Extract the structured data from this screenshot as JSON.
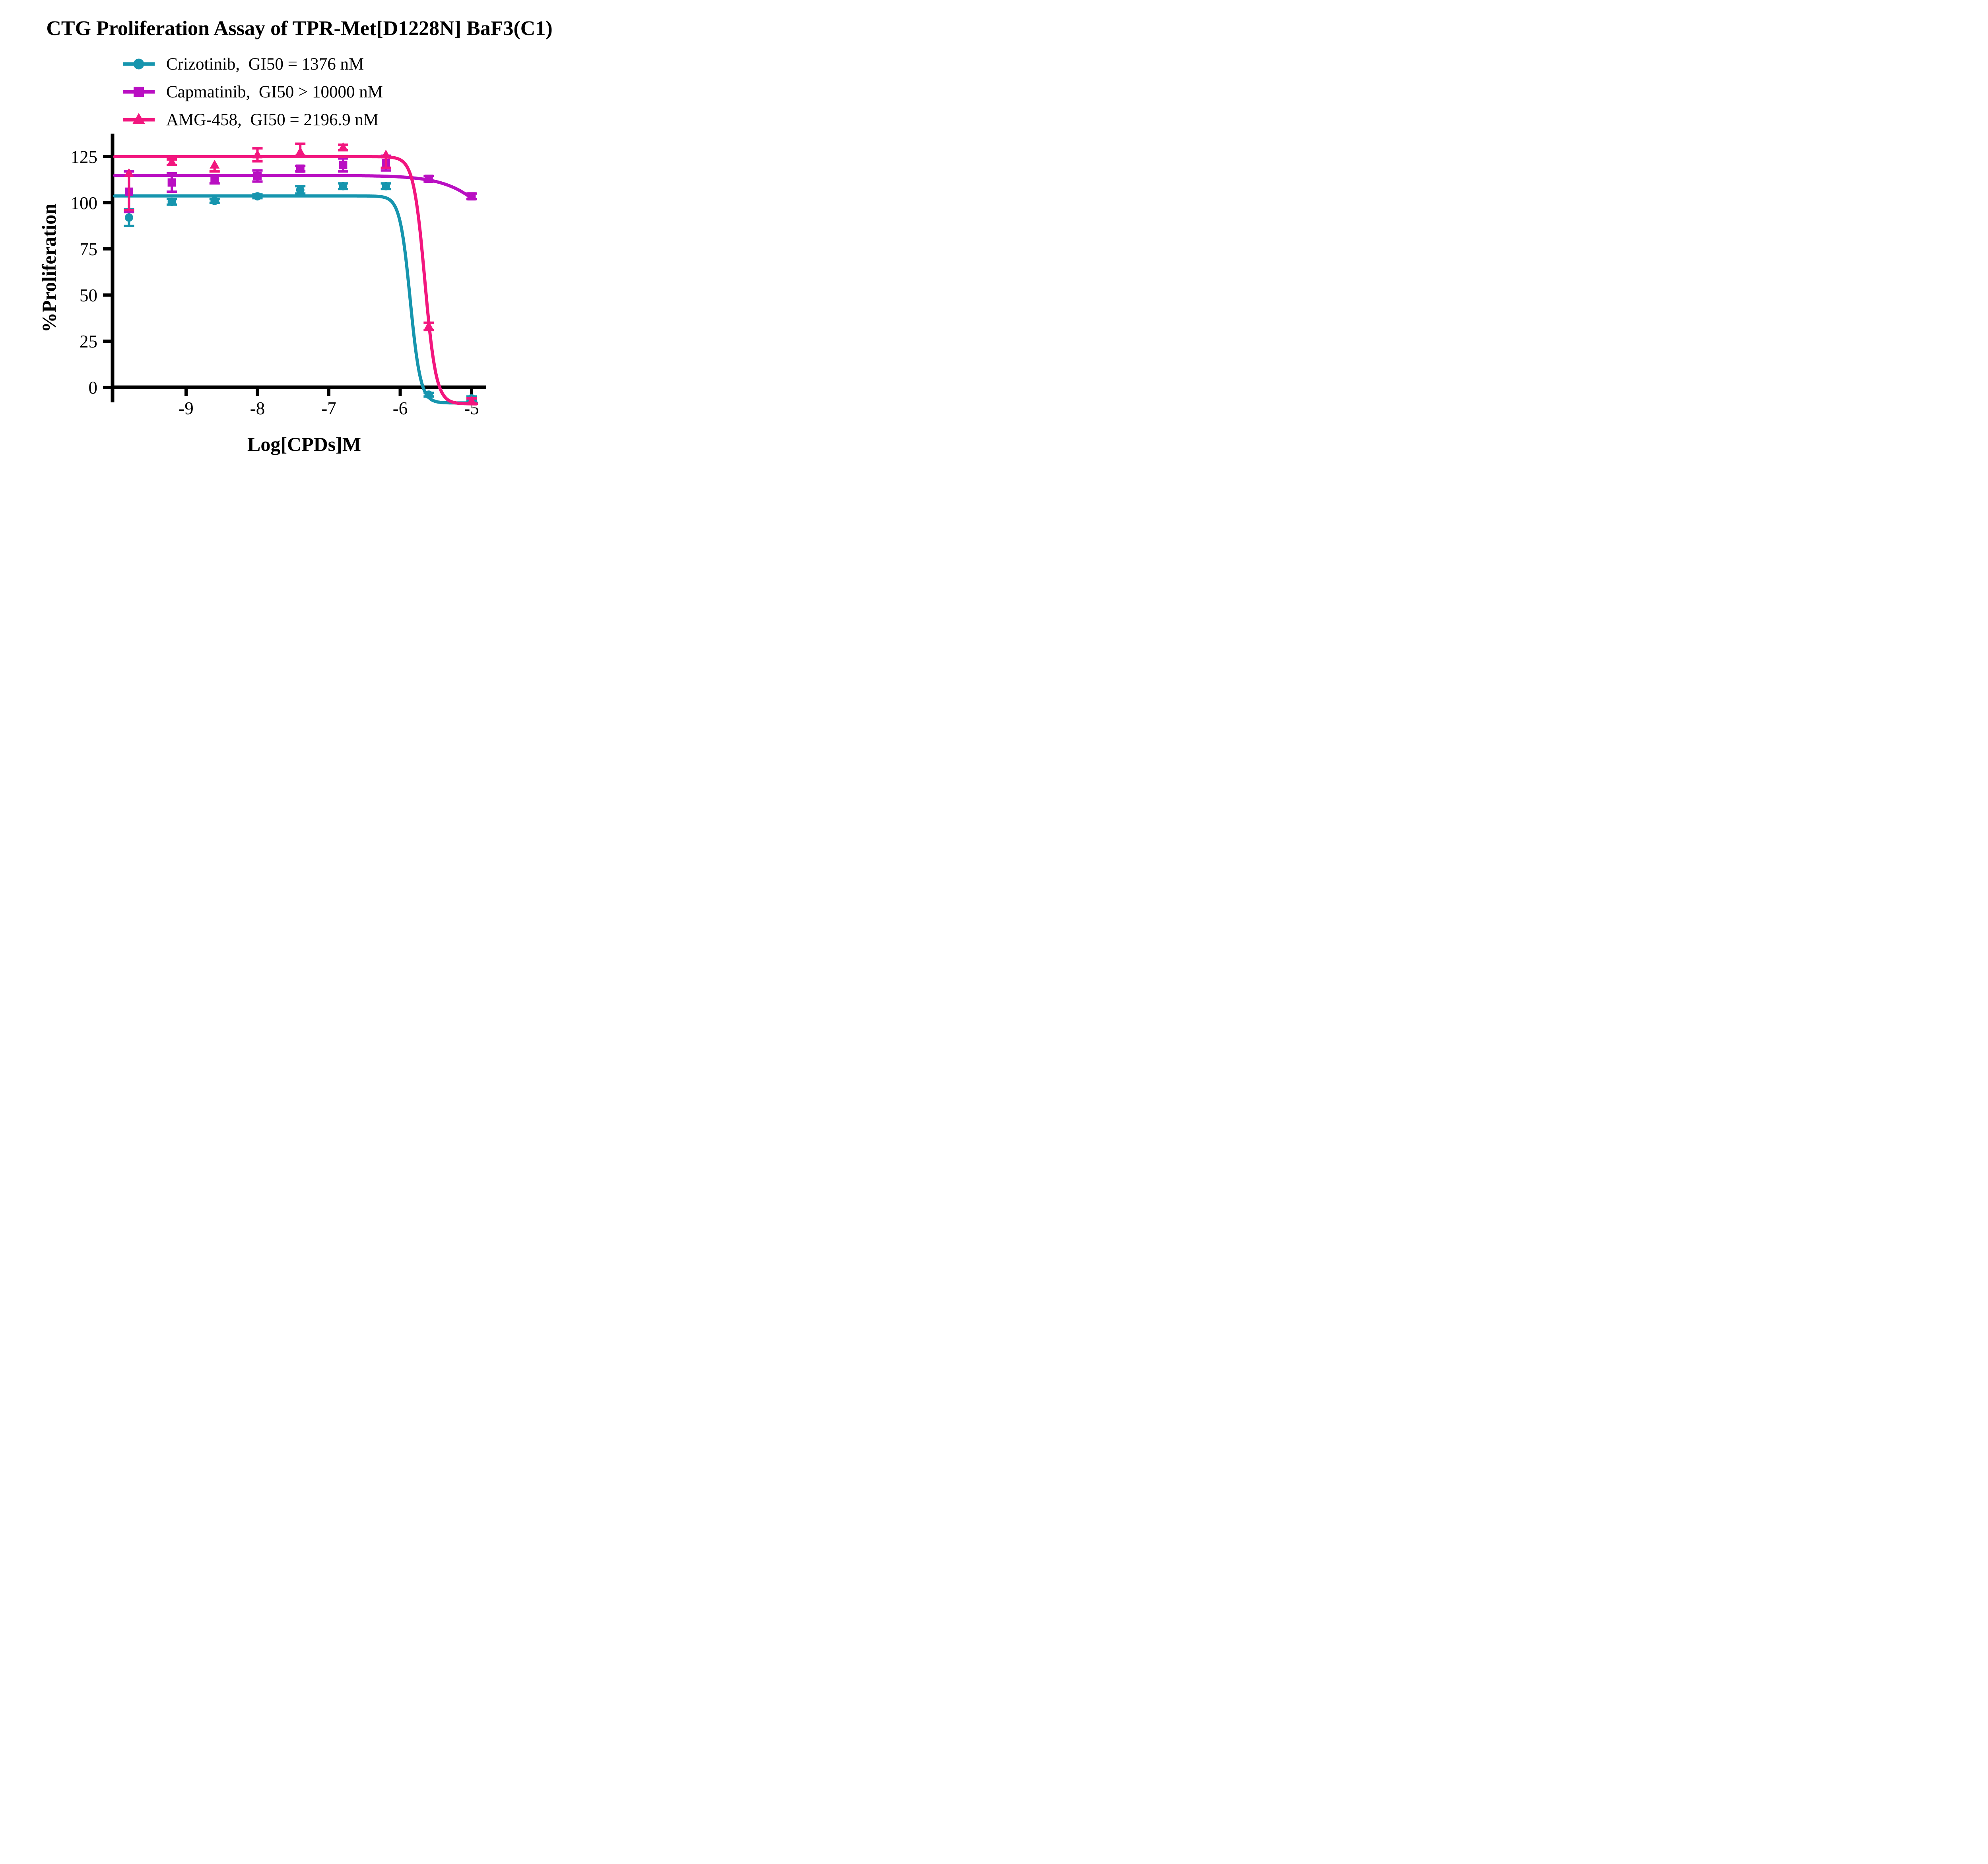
{
  "title": "CTG Proliferation Assay of TPR-Met[D1228N] BaF3(C1)",
  "legend": [
    {
      "label": "Crizotinib,  GI50 = 1376 nM"
    },
    {
      "label": "Capmatinib,  GI50 > 10000 nM"
    },
    {
      "label": "AMG-458,  GI50 = 2196.9 nM"
    }
  ],
  "chart_data": {
    "type": "line",
    "title": "CTG Proliferation Assay of TPR-Met[D1228N] BaF3(C1)",
    "xlabel": "Log[CPDs]M",
    "ylabel": "%Proliferation",
    "xlim": [
      -10.03,
      -4.8
    ],
    "ylim": [
      -12.5,
      137.5
    ],
    "xticks": [
      "-9",
      "-8",
      "-7",
      "-6",
      "-5"
    ],
    "xtick_values": [
      -9,
      -8,
      -7,
      -6,
      -5
    ],
    "yticks": [
      "0",
      "25",
      "50",
      "75",
      "100",
      "125"
    ],
    "ytick_values": [
      0,
      25,
      50,
      75,
      100,
      125
    ],
    "grid": false,
    "legend_position": "top-left",
    "x": [
      -9.8,
      -9.2,
      -8.6,
      -8.0,
      -7.4,
      -6.8,
      -6.2,
      -5.6,
      -5.0
    ],
    "series": [
      {
        "name": "Crizotinib",
        "gi50_label": "GI50 = 1376 nM",
        "marker": "circle",
        "color": "#1695AE",
        "values": [
          92,
          100.5,
          101,
          103.5,
          107,
          109,
          109,
          -4,
          -6
        ],
        "err_lo": [
          4.5,
          1.5,
          1,
          1,
          2,
          1.5,
          1.5,
          1,
          1
        ],
        "err_hi": [
          4.5,
          1.5,
          1,
          1,
          2,
          1.5,
          1.5,
          1,
          1
        ],
        "fit": {
          "top": 103.7,
          "bottom": -8.5,
          "logic50": -5.86,
          "hill": -6,
          "xstart": -10.0,
          "xend": -4.93
        }
      },
      {
        "name": "Capmatinib",
        "gi50_label": "GI50 > 10000 nM",
        "marker": "square",
        "color": "#B90FC2",
        "values": [
          106,
          111,
          112.5,
          114.5,
          118.5,
          120.5,
          121.5,
          113,
          103.5
        ],
        "err_lo": [
          11,
          5,
          2,
          3,
          1.5,
          3.5,
          4,
          1.5,
          1.5
        ],
        "err_hi": [
          11,
          5,
          2,
          3,
          1.5,
          3.5,
          4,
          1.5,
          1.5
        ],
        "fit": {
          "top": 114.8,
          "bottom": 55,
          "logic50": -4.55,
          "hill": -1.3,
          "xstart": -10.0,
          "xend": -5.0
        }
      },
      {
        "name": "AMG-458",
        "gi50_label": "GI50 = 2196.9 nM",
        "marker": "triangle",
        "color": "#F2167E",
        "values": [
          116,
          122,
          120.5,
          126,
          127.5,
          130,
          126,
          33,
          -7.5
        ],
        "err_lo": [
          20,
          1.5,
          3.5,
          3.5,
          2,
          1.5,
          7,
          2,
          1.5
        ],
        "err_hi": [
          0,
          1.5,
          0,
          3.5,
          4.5,
          1.5,
          0,
          2,
          1.5
        ],
        "fit": {
          "top": 125,
          "bottom": -9,
          "logic50": -5.655,
          "hill": -5.5,
          "xstart": -10.0,
          "xend": -4.93
        }
      }
    ]
  }
}
